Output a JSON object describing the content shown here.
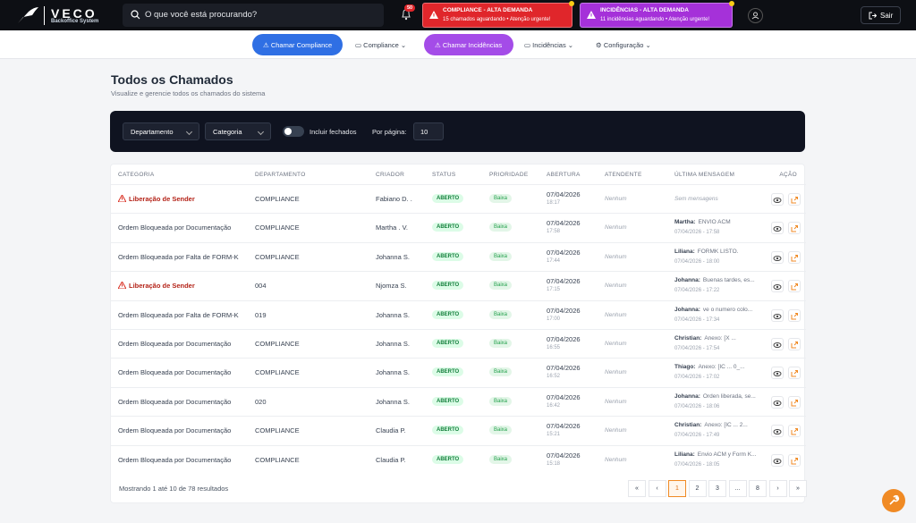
{
  "topbar": {
    "logo_title": "VECO",
    "logo_subtitle": "Backoffice System",
    "search_placeholder": "O que você está procurando?",
    "notifications": "50",
    "alerts": [
      {
        "title": "COMPLIANCE - ALTA DEMANDA",
        "text": "15 chamados aguardando • Atenção urgente!",
        "color": "#e0262b"
      },
      {
        "title": "INCIDÊNCIAS - ALTA DEMANDA",
        "text": "11 incidências aguardando • Atenção urgente!",
        "color": "#a531d9"
      }
    ],
    "logout": "Sair"
  },
  "nav": [
    {
      "label": "Chamar Compliance"
    },
    {
      "label": "Compliance"
    },
    {
      "label": "Chamar Incidências"
    },
    {
      "label": "Incidências"
    },
    {
      "label": "Configuração"
    }
  ],
  "page": {
    "title": "Todos os Chamados",
    "subtitle": "Visualize e gerencie todos os chamados do sistema"
  },
  "filters": {
    "departamento": "Departamento",
    "categoria": "Categoria",
    "include_closed": "Incluir fechados",
    "per_page_label": "Por página:",
    "per_page": "10"
  },
  "table": {
    "columns": [
      "CATEGORIA",
      "DEPARTAMENTO",
      "CRIADOR",
      "STATUS",
      "PRIORIDADE",
      "ABERTURA",
      "ATENDENTE",
      "ÚLTIMA MENSAGEM",
      "AÇÃO"
    ],
    "rows": [
      {
        "categoria": "Liberação de Sender",
        "urgent": true,
        "departamento": "COMPLIANCE",
        "criador": "Fabiano D. .",
        "status": "ABERTO",
        "prioridade": "Baixa",
        "abertura": {
          "date": "07/04/2026",
          "time": "18:17"
        },
        "atendente": "Nenhum",
        "ultima": {
          "text": "Sem mensagens"
        }
      },
      {
        "categoria": "Ordem Bloqueada por Documentação",
        "urgent": false,
        "departamento": "COMPLIANCE",
        "criador": "Martha . V.",
        "status": "ABERTO",
        "prioridade": "Baixa",
        "abertura": {
          "date": "07/04/2026",
          "time": "17:58"
        },
        "atendente": "Nenhum",
        "ultima": {
          "author": "Martha:",
          "text": "ENVIO ACM",
          "time": "07/04/2026 - 17:58"
        }
      },
      {
        "categoria": "Ordem Bloqueada por Falta de FORM-K",
        "urgent": false,
        "departamento": "COMPLIANCE",
        "criador": "Johanna S.",
        "status": "ABERTO",
        "prioridade": "Baixa",
        "abertura": {
          "date": "07/04/2026",
          "time": "17:44"
        },
        "atendente": "Nenhum",
        "ultima": {
          "author": "Liliana:",
          "text": "FORMK LISTO.",
          "time": "07/04/2026 - 18:00"
        }
      },
      {
        "categoria": "Liberação de Sender",
        "urgent": true,
        "departamento": "004",
        "criador": "Njomza S.",
        "status": "ABERTO",
        "prioridade": "Baixa",
        "abertura": {
          "date": "07/04/2026",
          "time": "17:15"
        },
        "atendente": "Nenhum",
        "ultima": {
          "author": "Johanna:",
          "text": "Buenas tardes, es...",
          "time": "07/04/2026 - 17:22"
        }
      },
      {
        "categoria": "Ordem Bloqueada por Falta de FORM-K",
        "urgent": false,
        "departamento": "019",
        "criador": "Johanna S.",
        "status": "ABERTO",
        "prioridade": "Baixa",
        "abertura": {
          "date": "07/04/2026",
          "time": "17:00"
        },
        "atendente": "Nenhum",
        "ultima": {
          "author": "Johanna:",
          "text": "ve o numero colo...",
          "time": "07/04/2026 - 17:34"
        }
      },
      {
        "categoria": "Ordem Bloqueada por Documentação",
        "urgent": false,
        "departamento": "COMPLIANCE",
        "criador": "Johanna S.",
        "status": "ABERTO",
        "prioridade": "Baixa",
        "abertura": {
          "date": "07/04/2026",
          "time": "16:55"
        },
        "atendente": "Nenhum",
        "ultima": {
          "author": "Christian:",
          "text": "Anexo: [X ...",
          "time": "07/04/2026 - 17:54"
        }
      },
      {
        "categoria": "Ordem Bloqueada por Documentação",
        "urgent": false,
        "departamento": "COMPLIANCE",
        "criador": "Johanna S.",
        "status": "ABERTO",
        "prioridade": "Baixa",
        "abertura": {
          "date": "07/04/2026",
          "time": "16:52"
        },
        "atendente": "Nenhum",
        "ultima": {
          "author": "Thiago:",
          "text": "Anexo: [IC ... 0_...",
          "time": "07/04/2026 - 17:02"
        }
      },
      {
        "categoria": "Ordem Bloqueada por Documentação",
        "urgent": false,
        "departamento": "020",
        "criador": "Johanna S.",
        "status": "ABERTO",
        "prioridade": "Baixa",
        "abertura": {
          "date": "07/04/2026",
          "time": "16:42"
        },
        "atendente": "Nenhum",
        "ultima": {
          "author": "Johanna:",
          "text": "Orden liberada, se...",
          "time": "07/04/2026 - 18:06"
        }
      },
      {
        "categoria": "Ordem Bloqueada por Documentação",
        "urgent": false,
        "departamento": "COMPLIANCE",
        "criador": "Claudia P.",
        "status": "ABERTO",
        "prioridade": "Baixa",
        "abertura": {
          "date": "07/04/2026",
          "time": "15:21"
        },
        "atendente": "Nenhum",
        "ultima": {
          "author": "Christian:",
          "text": "Anexo: [IC ... 2...",
          "time": "07/04/2026 - 17:49"
        }
      },
      {
        "categoria": "Ordem Bloqueada por Documentação",
        "urgent": false,
        "departamento": "COMPLIANCE",
        "criador": "Claudia P.",
        "status": "ABERTO",
        "prioridade": "Baixa",
        "abertura": {
          "date": "07/04/2026",
          "time": "15:18"
        },
        "atendente": "Nenhum",
        "ultima": {
          "author": "Liliana:",
          "text": "Envio ACM y Form K...",
          "time": "07/04/2026 - 18:05"
        }
      }
    ],
    "footer": "Mostrando 1 até 10 de 78 resultados",
    "pagination": [
      {
        "label": "«"
      },
      {
        "label": "‹"
      },
      {
        "label": "1",
        "active": true
      },
      {
        "label": "2"
      },
      {
        "label": "3"
      },
      {
        "label": "..."
      },
      {
        "label": "8"
      },
      {
        "label": "›"
      },
      {
        "label": "»"
      }
    ]
  }
}
